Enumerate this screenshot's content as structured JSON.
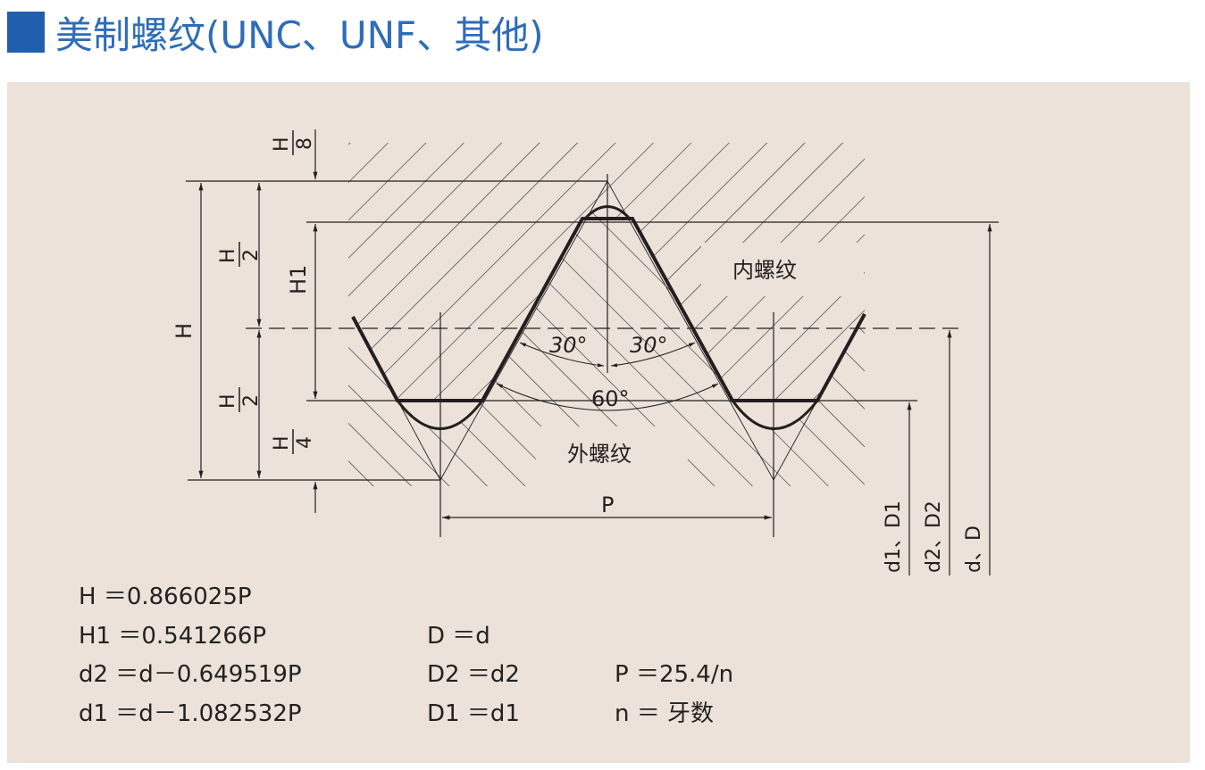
{
  "title": "美制螺纹(UNC、UNF、其他)",
  "colors": {
    "title": "#2e6db8",
    "title_square": "#1f5fae",
    "panel_bg": "#ece2d9",
    "line": "#231f20"
  },
  "diagram": {
    "internal_label": "内螺纹",
    "external_label": "外螺纹",
    "angle_left": "30°",
    "angle_right": "30°",
    "angle_total": "60°",
    "pitch": "P",
    "H": "H",
    "H_num": "H",
    "den_2": "2",
    "den_8": "8",
    "den_4": "4",
    "H1": "H1",
    "d1D1": "d1、D1",
    "d2D2": "d2、D2",
    "dD": "d、D"
  },
  "formulas": {
    "col1": [
      "H ＝0.866025P",
      "H1 ＝0.541266P",
      "d2 ＝d－0.649519P",
      "d1 ＝d－1.082532P"
    ],
    "col2": [
      "D ＝d",
      "D2 ＝d2",
      "D1 ＝d1"
    ],
    "col3": [
      "P ＝25.4/n",
      "n ＝ 牙数"
    ]
  }
}
